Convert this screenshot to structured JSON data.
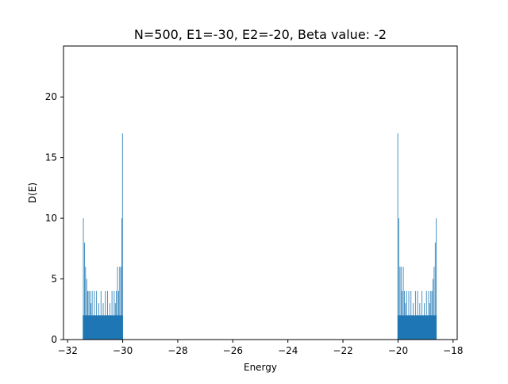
{
  "chart_data": {
    "type": "bar",
    "title": "N=500, E1=-30, E2=-20, Beta value: -2",
    "xlabel": "Energy",
    "ylabel": "D(E)",
    "xlim": [
      -32.15,
      -17.85
    ],
    "ylim": [
      0,
      24.2
    ],
    "grid": false,
    "bar_color": "#1f77b4",
    "bin_width": 0.02,
    "xticks": [
      -32,
      -30,
      -28,
      -26,
      -24,
      -22,
      -20,
      -18
    ],
    "xtick_labels": [
      "−32",
      "−30",
      "−28",
      "−26",
      "−24",
      "−22",
      "−20",
      "−18"
    ],
    "yticks": [
      0,
      5,
      10,
      15,
      20
    ],
    "ytick_labels": [
      "0",
      "5",
      "10",
      "15",
      "20"
    ],
    "bars": [
      {
        "x": -31.43,
        "value": 10
      },
      {
        "x": -31.39,
        "value": 8
      },
      {
        "x": -31.35,
        "value": 6
      },
      {
        "x": -31.31,
        "value": 5
      },
      {
        "x": -31.27,
        "value": 4
      },
      {
        "x": -31.23,
        "value": 4
      },
      {
        "x": -31.19,
        "value": 4
      },
      {
        "x": -31.15,
        "value": 3
      },
      {
        "x": -31.11,
        "value": 4
      },
      {
        "x": -31.07,
        "value": 2
      },
      {
        "x": -31.03,
        "value": 4
      },
      {
        "x": -30.99,
        "value": 2
      },
      {
        "x": -30.95,
        "value": 4
      },
      {
        "x": -30.91,
        "value": 2
      },
      {
        "x": -30.87,
        "value": 3
      },
      {
        "x": -30.83,
        "value": 2
      },
      {
        "x": -30.79,
        "value": 4
      },
      {
        "x": -30.75,
        "value": 2
      },
      {
        "x": -30.71,
        "value": 3
      },
      {
        "x": -30.67,
        "value": 2
      },
      {
        "x": -30.63,
        "value": 4
      },
      {
        "x": -30.59,
        "value": 2
      },
      {
        "x": -30.55,
        "value": 4
      },
      {
        "x": -30.51,
        "value": 2
      },
      {
        "x": -30.47,
        "value": 3
      },
      {
        "x": -30.43,
        "value": 2
      },
      {
        "x": -30.39,
        "value": 4
      },
      {
        "x": -30.35,
        "value": 2
      },
      {
        "x": -30.31,
        "value": 4
      },
      {
        "x": -30.27,
        "value": 3
      },
      {
        "x": -30.23,
        "value": 4
      },
      {
        "x": -30.19,
        "value": 6
      },
      {
        "x": -30.15,
        "value": 4
      },
      {
        "x": -30.11,
        "value": 6
      },
      {
        "x": -30.07,
        "value": 6
      },
      {
        "x": -30.03,
        "value": 10
      },
      {
        "x": -30.01,
        "value": 17
      },
      {
        "x": -20.01,
        "value": 17
      },
      {
        "x": -19.97,
        "value": 10
      },
      {
        "x": -19.93,
        "value": 6
      },
      {
        "x": -19.89,
        "value": 6
      },
      {
        "x": -19.85,
        "value": 4
      },
      {
        "x": -19.81,
        "value": 6
      },
      {
        "x": -19.77,
        "value": 4
      },
      {
        "x": -19.73,
        "value": 3
      },
      {
        "x": -19.69,
        "value": 4
      },
      {
        "x": -19.65,
        "value": 2
      },
      {
        "x": -19.61,
        "value": 4
      },
      {
        "x": -19.57,
        "value": 2
      },
      {
        "x": -19.53,
        "value": 4
      },
      {
        "x": -19.49,
        "value": 2
      },
      {
        "x": -19.45,
        "value": 3
      },
      {
        "x": -19.41,
        "value": 2
      },
      {
        "x": -19.37,
        "value": 4
      },
      {
        "x": -19.33,
        "value": 2
      },
      {
        "x": -19.29,
        "value": 4
      },
      {
        "x": -19.25,
        "value": 2
      },
      {
        "x": -19.21,
        "value": 3
      },
      {
        "x": -19.17,
        "value": 2
      },
      {
        "x": -19.13,
        "value": 4
      },
      {
        "x": -19.09,
        "value": 2
      },
      {
        "x": -19.05,
        "value": 3
      },
      {
        "x": -19.01,
        "value": 2
      },
      {
        "x": -18.97,
        "value": 4
      },
      {
        "x": -18.93,
        "value": 2
      },
      {
        "x": -18.89,
        "value": 4
      },
      {
        "x": -18.85,
        "value": 3
      },
      {
        "x": -18.81,
        "value": 4
      },
      {
        "x": -18.77,
        "value": 4
      },
      {
        "x": -18.73,
        "value": 5
      },
      {
        "x": -18.69,
        "value": 6
      },
      {
        "x": -18.65,
        "value": 8
      },
      {
        "x": -18.61,
        "value": 10
      }
    ]
  }
}
